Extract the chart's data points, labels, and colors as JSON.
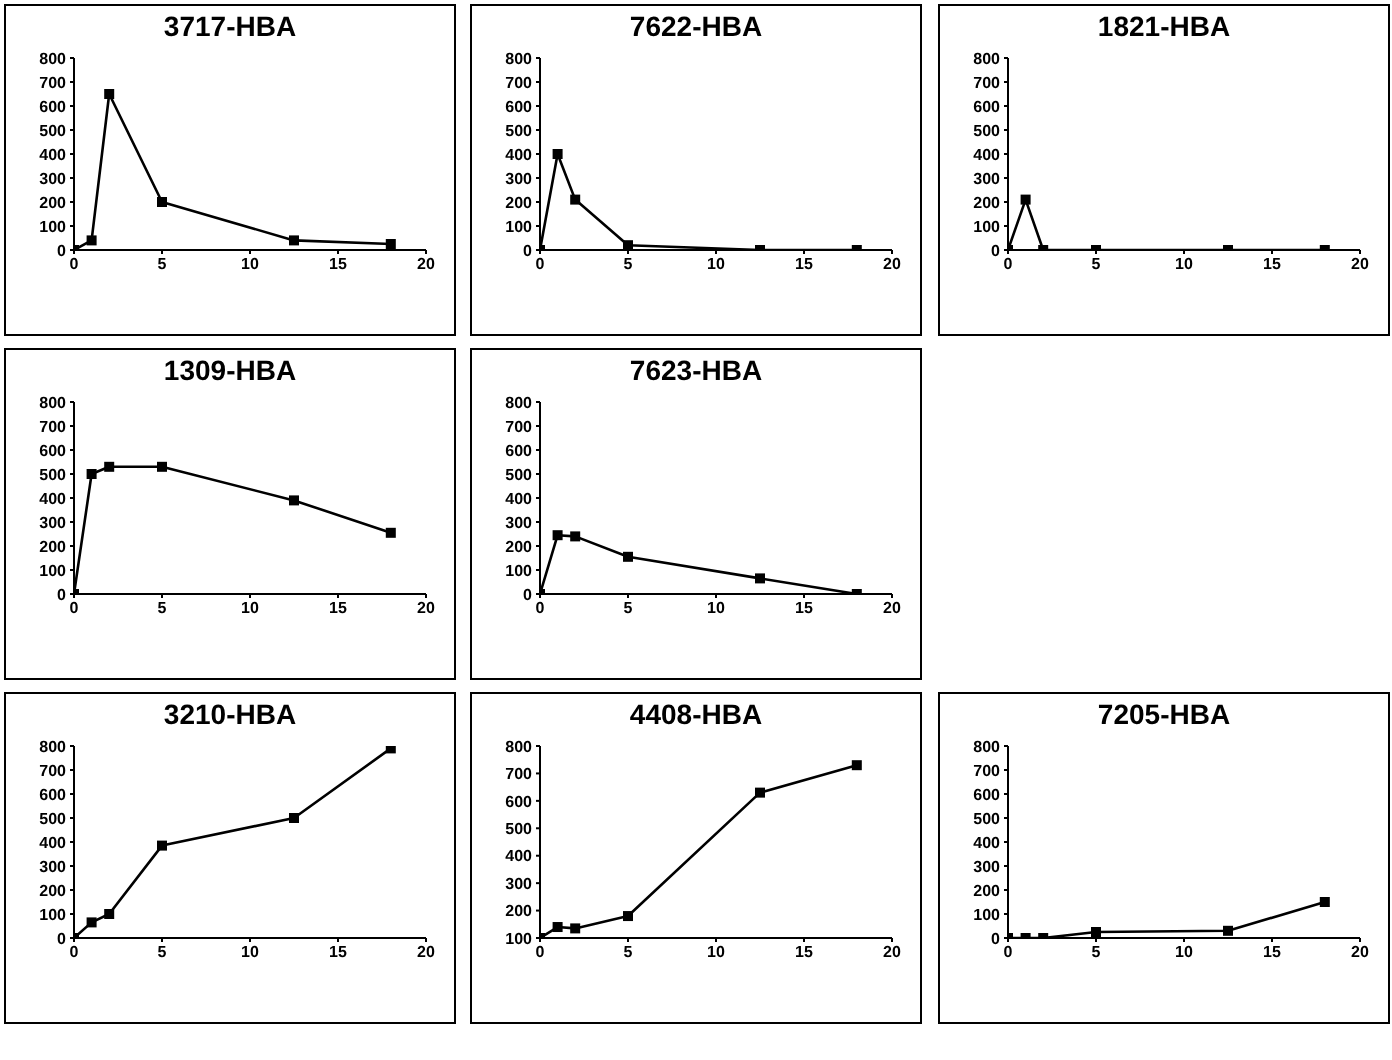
{
  "chart_data": [
    {
      "type": "line",
      "title": "3717-HBA",
      "x": [
        0,
        1,
        2,
        5,
        12.5,
        18
      ],
      "values": [
        0,
        40,
        650,
        200,
        40,
        25
      ],
      "color": "#000000",
      "marker": "square",
      "xlim": [
        0,
        20
      ],
      "xticks": [
        0,
        5,
        10,
        15,
        20
      ],
      "ylim": [
        0,
        800
      ],
      "yticks": [
        0,
        100,
        200,
        300,
        400,
        500,
        600,
        700,
        800
      ]
    },
    {
      "type": "line",
      "title": "7622-HBA",
      "x": [
        0,
        1,
        2,
        5,
        12.5,
        18
      ],
      "values": [
        0,
        400,
        210,
        20,
        0,
        0
      ],
      "color": "#000000",
      "marker": "square",
      "xlim": [
        0,
        20
      ],
      "xticks": [
        0,
        5,
        10,
        15,
        20
      ],
      "ylim": [
        0,
        800
      ],
      "yticks": [
        0,
        100,
        200,
        300,
        400,
        500,
        600,
        700,
        800
      ]
    },
    {
      "type": "line",
      "title": "1821-HBA",
      "x": [
        0,
        1,
        2,
        5,
        12.5,
        18
      ],
      "values": [
        0,
        210,
        0,
        0,
        0,
        0
      ],
      "color": "#000000",
      "marker": "square",
      "xlim": [
        0,
        20
      ],
      "xticks": [
        0,
        5,
        10,
        15,
        20
      ],
      "ylim": [
        0,
        800
      ],
      "yticks": [
        0,
        100,
        200,
        300,
        400,
        500,
        600,
        700,
        800
      ]
    },
    {
      "type": "line",
      "title": "1309-HBA",
      "x": [
        0,
        1,
        2,
        5,
        12.5,
        18
      ],
      "values": [
        0,
        500,
        530,
        530,
        390,
        255
      ],
      "color": "#000000",
      "marker": "square",
      "xlim": [
        0,
        20
      ],
      "xticks": [
        0,
        5,
        10,
        15,
        20
      ],
      "ylim": [
        0,
        800
      ],
      "yticks": [
        0,
        100,
        200,
        300,
        400,
        500,
        600,
        700,
        800
      ]
    },
    {
      "type": "line",
      "title": "7623-HBA",
      "x": [
        0,
        1,
        2,
        5,
        12.5,
        18
      ],
      "values": [
        0,
        245,
        240,
        155,
        65,
        0
      ],
      "color": "#000000",
      "marker": "square",
      "xlim": [
        0,
        20
      ],
      "xticks": [
        0,
        5,
        10,
        15,
        20
      ],
      "ylim": [
        0,
        800
      ],
      "yticks": [
        0,
        100,
        200,
        300,
        400,
        500,
        600,
        700,
        800
      ]
    },
    {
      "type": "line",
      "title": "3210-HBA",
      "x": [
        0,
        1,
        2,
        5,
        12.5,
        18
      ],
      "values": [
        0,
        65,
        100,
        385,
        500,
        790
      ],
      "color": "#000000",
      "marker": "square",
      "xlim": [
        0,
        20
      ],
      "xticks": [
        0,
        5,
        10,
        15,
        20
      ],
      "ylim": [
        0,
        800
      ],
      "yticks": [
        0,
        100,
        200,
        300,
        400,
        500,
        600,
        700,
        800
      ]
    },
    {
      "type": "line",
      "title": "4408-HBA",
      "x": [
        0,
        1,
        2,
        5,
        12.5,
        18
      ],
      "values": [
        100,
        140,
        135,
        180,
        630,
        730
      ],
      "color": "#000000",
      "marker": "square",
      "xlim": [
        0,
        20
      ],
      "xticks": [
        0,
        5,
        10,
        15,
        20
      ],
      "ylim": [
        100,
        800
      ],
      "yticks": [
        100,
        200,
        300,
        400,
        500,
        600,
        700,
        800
      ]
    },
    {
      "type": "line",
      "title": "7205-HBA",
      "x": [
        0,
        1,
        2,
        5,
        12.5,
        18
      ],
      "values": [
        0,
        0,
        0,
        25,
        30,
        150
      ],
      "color": "#000000",
      "marker": "square",
      "xlim": [
        0,
        20
      ],
      "xticks": [
        0,
        5,
        10,
        15,
        20
      ],
      "ylim": [
        0,
        800
      ],
      "yticks": [
        0,
        100,
        200,
        300,
        400,
        500,
        600,
        700,
        800
      ]
    }
  ]
}
